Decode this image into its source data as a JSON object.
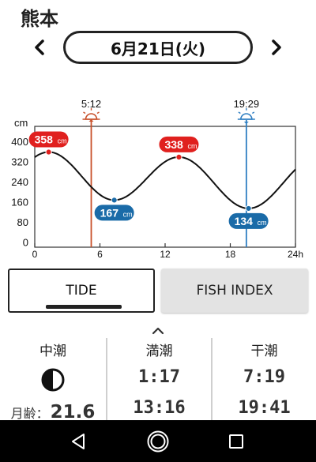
{
  "header": {
    "location": "熊本"
  },
  "date_nav": {
    "date_label": "6月21日(火)",
    "prev_icon": "chevron-left-icon",
    "next_icon": "chevron-right-icon"
  },
  "chart_data": {
    "type": "line",
    "title": "",
    "x_unit": "h",
    "y_unit": "cm",
    "xlim": [
      0,
      24
    ],
    "ylim": [
      -20,
      460
    ],
    "x_ticks": [
      0,
      6,
      12,
      18,
      24
    ],
    "x_tick_labels": [
      "0",
      "6",
      "12",
      "18",
      "24h"
    ],
    "y_ticks": [
      400,
      320,
      240,
      160,
      80,
      0
    ],
    "y_tick_labels": [
      "400",
      "320",
      "240",
      "160",
      "80",
      "0"
    ],
    "extrema": [
      {
        "kind": "high",
        "time": 1.28,
        "value": 358,
        "label": "358",
        "unit": "cm"
      },
      {
        "kind": "low",
        "time": 7.32,
        "value": 167,
        "label": "167",
        "unit": "cm"
      },
      {
        "kind": "high",
        "time": 13.27,
        "value": 338,
        "label": "338",
        "unit": "cm"
      },
      {
        "kind": "low",
        "time": 19.68,
        "value": 134,
        "label": "134",
        "unit": "cm"
      }
    ],
    "curve_start": {
      "time": 0,
      "value": 330
    },
    "curve_end": {
      "time": 24,
      "value": 280
    },
    "sunrise": {
      "time": 5.2,
      "label": "5:12",
      "icon": "sunrise-icon"
    },
    "sunset": {
      "time": 19.48,
      "label": "19:29",
      "icon": "sunset-icon"
    },
    "grid": false,
    "colors": {
      "curve": "#111111",
      "high": "#e0201e",
      "low": "#1a6ba8",
      "sunrise": "#c8502a",
      "sunset": "#2f7fc2"
    }
  },
  "tabs": {
    "tide_label": "TIDE",
    "fish_label": "FISH INDEX",
    "active": "TIDE"
  },
  "expand_icon": "chevron-up-icon",
  "info": {
    "tide_type": "中潮",
    "moon_icon": "moon-phase-icon",
    "moon_age_label": "月齢：",
    "moon_age_value": "21.6",
    "high_heading": "満潮",
    "high_times": [
      "1:17",
      "13:16"
    ],
    "low_heading": "干潮",
    "low_times": [
      "7:19",
      "19:41"
    ]
  },
  "system_nav": {
    "back_icon": "back-triangle-icon",
    "home_icon": "home-circle-icon",
    "recents_icon": "recents-square-icon"
  }
}
